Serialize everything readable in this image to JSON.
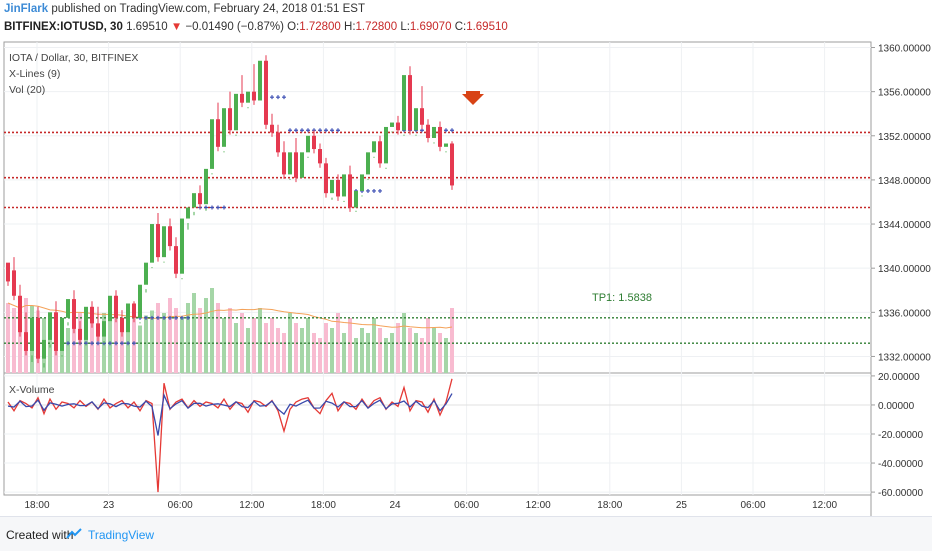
{
  "header": {
    "author": "JinFlark",
    "published_text": "published on TradingView.com, February 24, 2018 01:51 EST",
    "symbol": "BITFINEX:IOTUSD, 30",
    "last": "1.69510",
    "change": "−0.01490 (−0.87%)",
    "o_label": "O:",
    "o_value": "1.72800",
    "h_label": "H:",
    "h_value": "1.72800",
    "l_label": "L:",
    "l_value": "1.69070",
    "c_label": "C:",
    "c_value": "1.69510"
  },
  "legend": {
    "title": "IOTA / Dollar, 30, BITFINEX",
    "xlines": "X-Lines (9)",
    "vol": "Vol (20)",
    "xvolume": "X-Volume"
  },
  "tp_label": "TP1: 1.5838",
  "footer": {
    "created_with": "Created with",
    "brand": "TradingView"
  },
  "colors": {
    "up": "#4caf50",
    "down": "#e53950",
    "dotted_red": "#c62828",
    "dotted_green": "#2e7d32",
    "xline_marker": "#3f51b5",
    "vol_up": "#a5d6a7",
    "vol_down": "#f8bbd0",
    "vol_ma": "#f4a259",
    "xvol_red": "#e53935",
    "xvol_blue": "#3949ab",
    "arrow": "#d84315"
  },
  "chart_data": {
    "type": "candlestick",
    "price_axis": {
      "ticks": [
        "1360.00000",
        "1356.00000",
        "1352.00000",
        "1348.00000",
        "1344.00000",
        "1340.00000",
        "1336.00000",
        "1332.00000"
      ],
      "range": [
        1330.5,
        1360.5
      ]
    },
    "xvol_axis": {
      "ticks": [
        "20.00000",
        "0.00000",
        "-20.00000",
        "-40.00000",
        "-60.00000"
      ],
      "range": [
        -62,
        22
      ]
    },
    "time_axis": {
      "labels": [
        "18:00",
        "23",
        "06:00",
        "12:00",
        "18:00",
        "24",
        "06:00",
        "12:00",
        "18:00",
        "25",
        "06:00",
        "12:00"
      ]
    },
    "horizontal_levels": {
      "red_dotted": [
        1352.3,
        1348.2,
        1345.5
      ],
      "green_dotted": [
        1335.5,
        1333.2
      ]
    },
    "candles": [
      [
        1340.5,
        1338.8,
        1339.8
      ],
      [
        1339.8,
        1337.5,
        1341.0
      ],
      [
        1337.5,
        1334.2,
        1338.5
      ],
      [
        1334.2,
        1332.5,
        1336.0
      ],
      [
        1332.5,
        1335.5,
        1331.5
      ],
      [
        1335.5,
        1331.8,
        1336.5
      ],
      [
        1331.8,
        1333.5,
        1331.0
      ],
      [
        1333.5,
        1336.0,
        1332.8
      ],
      [
        1336.0,
        1332.5,
        1337.0
      ],
      [
        1332.5,
        1335.5,
        1332.0
      ],
      [
        1335.5,
        1337.2,
        1334.8
      ],
      [
        1337.2,
        1334.5,
        1338.0
      ],
      [
        1334.5,
        1333.5,
        1335.2
      ],
      [
        1333.5,
        1336.5,
        1333.0
      ],
      [
        1336.5,
        1335.0,
        1337.0
      ],
      [
        1335.0,
        1333.8,
        1336.5
      ],
      [
        1333.8,
        1335.2,
        1333.2
      ],
      [
        1335.2,
        1337.5,
        1334.8
      ],
      [
        1337.5,
        1335.5,
        1338.0
      ],
      [
        1335.5,
        1334.2,
        1336.2
      ],
      [
        1334.2,
        1336.8,
        1333.8
      ],
      [
        1336.8,
        1335.5,
        1337.0
      ],
      [
        1335.5,
        1338.5,
        1335.0
      ],
      [
        1338.5,
        1340.5,
        1337.8
      ],
      [
        1340.5,
        1344.0,
        1340.0
      ],
      [
        1344.0,
        1341.0,
        1345.0
      ],
      [
        1341.0,
        1343.8,
        1340.5
      ],
      [
        1343.8,
        1342.0,
        1344.5
      ],
      [
        1342.0,
        1339.5,
        1342.8
      ],
      [
        1339.5,
        1344.5,
        1339.0
      ],
      [
        1344.5,
        1345.5,
        1343.5
      ],
      [
        1345.5,
        1346.8,
        1344.8
      ],
      [
        1346.8,
        1345.8,
        1347.5
      ],
      [
        1345.8,
        1349.0,
        1345.2
      ],
      [
        1349.0,
        1353.5,
        1348.5
      ],
      [
        1353.5,
        1351.0,
        1355.0
      ],
      [
        1351.0,
        1354.5,
        1350.5
      ],
      [
        1354.5,
        1352.5,
        1356.0
      ],
      [
        1352.5,
        1355.8,
        1352.0
      ],
      [
        1355.8,
        1355.0,
        1357.5
      ],
      [
        1355.0,
        1356.0,
        1354.5
      ],
      [
        1356.0,
        1355.2,
        1358.5
      ],
      [
        1355.2,
        1358.8,
        1354.8
      ],
      [
        1358.8,
        1353.0,
        1359.3
      ],
      [
        1353.0,
        1352.3,
        1354.0
      ],
      [
        1352.3,
        1350.5,
        1353.0
      ],
      [
        1350.5,
        1348.5,
        1351.5
      ],
      [
        1348.5,
        1350.5,
        1348.0
      ],
      [
        1350.5,
        1348.2,
        1351.8
      ],
      [
        1348.2,
        1350.5,
        1347.8
      ],
      [
        1350.5,
        1352.0,
        1350.0
      ],
      [
        1352.0,
        1350.8,
        1352.5
      ],
      [
        1350.8,
        1349.5,
        1351.3
      ],
      [
        1349.5,
        1346.8,
        1350.0
      ],
      [
        1346.8,
        1348.0,
        1346.2
      ],
      [
        1348.0,
        1346.5,
        1348.5
      ],
      [
        1346.5,
        1348.5,
        1346.0
      ],
      [
        1348.5,
        1345.5,
        1349.3
      ],
      [
        1345.5,
        1347.0,
        1345.2
      ],
      [
        1347.0,
        1348.5,
        1346.5
      ],
      [
        1348.5,
        1350.5,
        1348.0
      ],
      [
        1350.5,
        1351.5,
        1350.0
      ],
      [
        1351.5,
        1349.5,
        1352.0
      ],
      [
        1349.5,
        1352.8,
        1349.0
      ],
      [
        1352.8,
        1353.2,
        1352.3
      ],
      [
        1353.2,
        1352.5,
        1353.8
      ],
      [
        1352.5,
        1357.5,
        1352.0
      ],
      [
        1357.5,
        1352.5,
        1358.3
      ],
      [
        1352.5,
        1354.5,
        1352.0
      ],
      [
        1354.5,
        1353.0,
        1356.5
      ],
      [
        1353.0,
        1351.8,
        1353.5
      ],
      [
        1351.8,
        1352.8,
        1351.3
      ],
      [
        1352.8,
        1351.0,
        1353.3
      ],
      [
        1351.0,
        1351.3,
        1350.5
      ],
      [
        1351.3,
        1347.5,
        1351.5
      ]
    ],
    "volumes": [
      28,
      26,
      24,
      30,
      27,
      25,
      22,
      20,
      24,
      21,
      18,
      26,
      24,
      22,
      20,
      19,
      24,
      21,
      23,
      18,
      20,
      22,
      19,
      23,
      25,
      28,
      24,
      30,
      26,
      22,
      28,
      32,
      26,
      30,
      34,
      28,
      22,
      26,
      20,
      24,
      18,
      22,
      26,
      20,
      22,
      18,
      16,
      24,
      20,
      18,
      22,
      16,
      14,
      20,
      18,
      24,
      16,
      22,
      14,
      18,
      16,
      22,
      18,
      14,
      16,
      20,
      24,
      18,
      16,
      14,
      22,
      18,
      16,
      14,
      26
    ],
    "xvolume": [
      2,
      -4,
      3,
      1,
      -2,
      5,
      -6,
      4,
      -3,
      2,
      1,
      -2,
      3,
      -1,
      2,
      -3,
      4,
      -2,
      1,
      3,
      -2,
      2,
      -4,
      3,
      1,
      -60,
      15,
      -3,
      2,
      4,
      -2,
      3,
      -1,
      2,
      1,
      -2,
      4,
      -3,
      2,
      1,
      -5,
      3,
      2,
      -1,
      3,
      -4,
      -18,
      -3,
      2,
      4,
      5,
      -2,
      -6,
      3,
      8,
      -4,
      2,
      1,
      -3,
      4,
      -2,
      3,
      5,
      -3,
      2,
      -1,
      12,
      -4,
      3,
      2,
      -5,
      4,
      -7,
      2,
      18
    ]
  }
}
